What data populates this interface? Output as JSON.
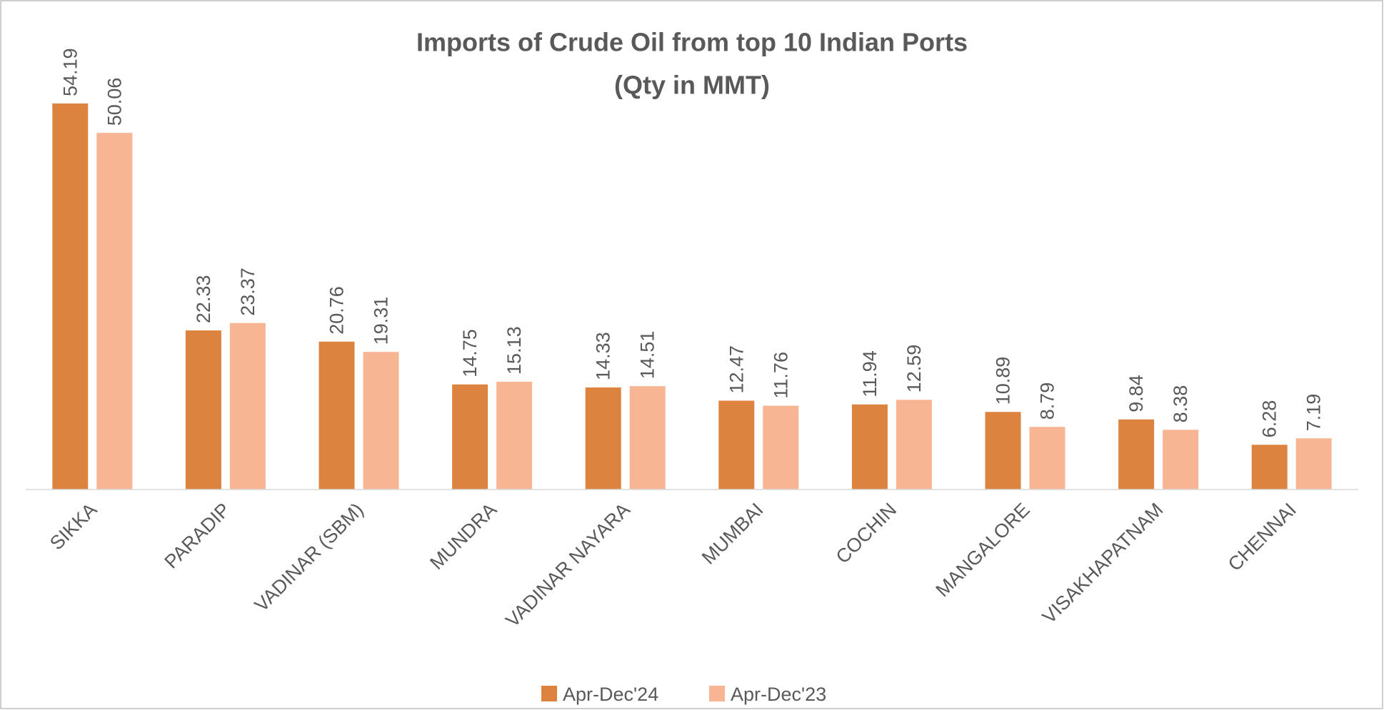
{
  "chart_data": {
    "type": "bar",
    "title": "Imports of Crude Oil from top 10 Indian Ports",
    "subtitle": "(Qty in MMT)",
    "categories": [
      "SIKKA",
      "PARADIP",
      "VADINAR (SBM)",
      "MUNDRA",
      "VADINAR NAYARA",
      "MUMBAI",
      "COCHIN",
      "MANGALORE",
      "VISAKHAPATNAM",
      "CHENNAI"
    ],
    "series": [
      {
        "name": "Apr-Dec'24",
        "color": "#dc843f",
        "values": [
          54.19,
          22.33,
          20.76,
          14.75,
          14.33,
          12.47,
          11.94,
          10.89,
          9.84,
          6.28
        ]
      },
      {
        "name": "Apr-Dec'23",
        "color": "#f8b593",
        "values": [
          50.06,
          23.37,
          19.31,
          15.13,
          14.51,
          11.76,
          12.59,
          8.79,
          8.38,
          7.19
        ]
      }
    ],
    "ylim": [
      0,
      60
    ],
    "legend": "bottom"
  }
}
